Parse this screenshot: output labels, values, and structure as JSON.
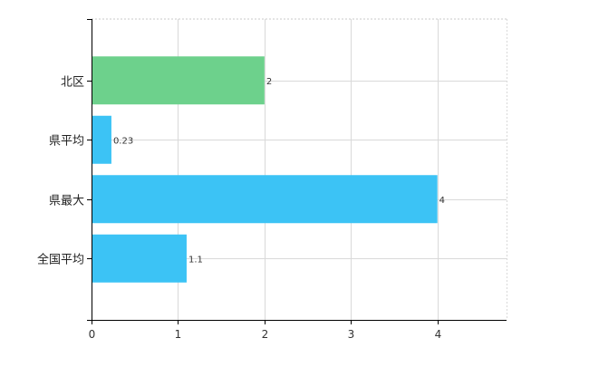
{
  "chart_data": {
    "type": "bar",
    "orientation": "horizontal",
    "title": "",
    "xlabel": "",
    "ylabel": "",
    "categories": [
      "北区",
      "県平均",
      "県最大",
      "全国平均"
    ],
    "values": [
      2,
      0.23,
      4,
      1.1
    ],
    "data_labels": [
      "2",
      "0.23",
      "4",
      "1.1"
    ],
    "colors": [
      "#6dd18c",
      "#3cc3f5",
      "#3cc3f5",
      "#3cc3f5"
    ],
    "xlim": [
      0,
      4.8
    ],
    "xticks": [
      0,
      1,
      2,
      3,
      4
    ],
    "grid": true,
    "legend": "none"
  }
}
